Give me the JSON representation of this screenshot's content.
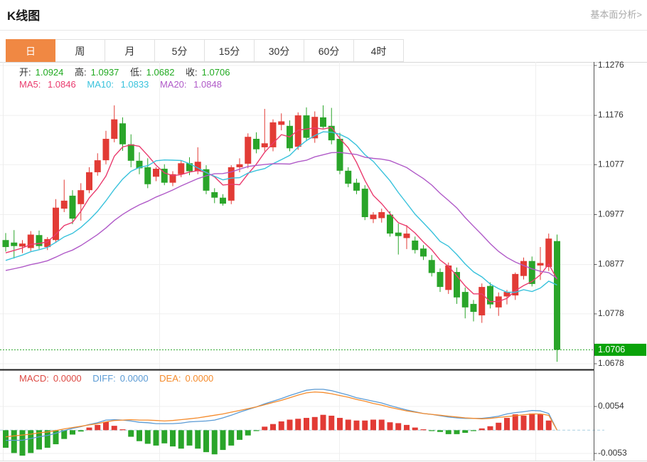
{
  "header": {
    "title": "K线图",
    "link": "基本面分析>"
  },
  "tabs": {
    "items": [
      "日",
      "周",
      "月",
      "5分",
      "15分",
      "30分",
      "60分",
      "4时"
    ],
    "selected_index": 0
  },
  "kline_legend": {
    "open_label": "开:",
    "open": "1.0924",
    "high_label": "高:",
    "high": "1.0937",
    "low_label": "低:",
    "low": "1.0682",
    "close_label": "收:",
    "close": "1.0706"
  },
  "ma_legend": {
    "ma5_label": "MA5:",
    "ma5": "1.0846",
    "ma10_label": "MA10:",
    "ma10": "1.0833",
    "ma20_label": "MA20:",
    "ma20": "1.0848"
  },
  "macd_legend": {
    "macd_label": "MACD:",
    "macd": "0.0000",
    "diff_label": "DIFF:",
    "diff": "0.0000",
    "dea_label": "DEA:",
    "dea": "0.0000"
  },
  "price_axis": {
    "ticks": [
      "1.1276",
      "1.1176",
      "1.1077",
      "1.0977",
      "1.0877",
      "1.0778",
      "1.0678"
    ],
    "current_price": "1.0706"
  },
  "macd_axis": {
    "ticks": [
      "0.0054",
      "-0.0053"
    ]
  },
  "colors": {
    "up": "#e23b35",
    "down": "#2aa52a",
    "ma5": "#ea3b6e",
    "ma10": "#38c2dc",
    "ma20": "#b05ac8",
    "diff": "#5b9bd5",
    "dea": "#f58b2c",
    "macd_text": "#dd4a44",
    "grid": "#efefef",
    "axis": "#555555",
    "axis_text": "#333333",
    "zero_dash": "#a9cfe0",
    "price_dash": "#2aa52a",
    "badge_bg": "#0aa30a",
    "tab_selected": "#f08843"
  },
  "chart_data": [
    {
      "type": "candlestick",
      "title": "K线图 (daily candlesticks with MA5/MA10/MA20)",
      "yticks": [
        1.1276,
        1.1176,
        1.1077,
        1.0977,
        1.0877,
        1.0778,
        1.0678
      ],
      "last_bar": {
        "open": 1.0924,
        "high": 1.0937,
        "low": 1.0682,
        "close": 1.0706
      },
      "current_price": 1.0706,
      "ma_periods": [
        5,
        10,
        20
      ],
      "ma_last_values": {
        "MA5": 1.0846,
        "MA10": 1.0833,
        "MA20": 1.0848
      },
      "ma_seed": [
        1.0845,
        1.0845,
        1.0845,
        1.0845,
        1.0845,
        1.0845,
        1.0845,
        1.0845,
        1.0845,
        1.0845,
        1.086,
        1.0865,
        1.087,
        1.0875,
        1.088,
        1.089,
        1.0895,
        1.09,
        1.0905
      ],
      "candles": [
        [
          1.0926,
          1.094,
          1.0903,
          1.0912
        ],
        [
          1.0921,
          1.0946,
          1.0889,
          1.0914
        ],
        [
          1.0913,
          1.0926,
          1.09,
          1.0919
        ],
        [
          1.091,
          1.0944,
          1.0904,
          1.0937
        ],
        [
          1.0936,
          1.0945,
          1.0908,
          1.0914
        ],
        [
          1.0912,
          1.0932,
          1.0906,
          1.0928
        ],
        [
          1.0926,
          1.1008,
          1.0921,
          1.0991
        ],
        [
          1.0989,
          1.1047,
          1.0982,
          1.1005
        ],
        [
          1.1015,
          1.1026,
          1.0958,
          1.0969
        ],
        [
          1.0998,
          1.104,
          1.0965,
          1.1026
        ],
        [
          1.1026,
          1.1072,
          1.102,
          1.1062
        ],
        [
          1.1062,
          1.11,
          1.1055,
          1.1086
        ],
        [
          1.1086,
          1.1145,
          1.1078,
          1.1129
        ],
        [
          1.1129,
          1.1196,
          1.1122,
          1.1168
        ],
        [
          1.116,
          1.1172,
          1.1105,
          1.1118
        ],
        [
          1.1118,
          1.1138,
          1.1072,
          1.1085
        ],
        [
          1.1085,
          1.1102,
          1.1058,
          1.107
        ],
        [
          1.1072,
          1.109,
          1.103,
          1.1038
        ],
        [
          1.1053,
          1.1072,
          1.1044,
          1.1069
        ],
        [
          1.1069,
          1.1078,
          1.1036,
          1.1041
        ],
        [
          1.1041,
          1.1064,
          1.1034,
          1.1058
        ],
        [
          1.1058,
          1.1085,
          1.1052,
          1.108
        ],
        [
          1.108,
          1.1092,
          1.1056,
          1.1064
        ],
        [
          1.1064,
          1.1112,
          1.1058,
          1.1083
        ],
        [
          1.1068,
          1.1076,
          1.1018,
          1.1025
        ],
        [
          1.1022,
          1.103,
          1.1,
          1.1011
        ],
        [
          1.1011,
          1.1018,
          1.0995,
          1.0999
        ],
        [
          1.1005,
          1.1076,
          1.0998,
          1.1072
        ],
        [
          1.1072,
          1.109,
          1.1062,
          1.1078
        ],
        [
          1.1079,
          1.114,
          1.107,
          1.1133
        ],
        [
          1.1129,
          1.1142,
          1.11,
          1.1108
        ],
        [
          1.1112,
          1.1189,
          1.1104,
          1.112
        ],
        [
          1.1112,
          1.1168,
          1.1104,
          1.1162
        ],
        [
          1.1157,
          1.118,
          1.1146,
          1.1164
        ],
        [
          1.1155,
          1.1166,
          1.1104,
          1.111
        ],
        [
          1.1113,
          1.1182,
          1.1107,
          1.1176
        ],
        [
          1.1176,
          1.1192,
          1.1124,
          1.1131
        ],
        [
          1.113,
          1.1184,
          1.1121,
          1.1173
        ],
        [
          1.1172,
          1.1196,
          1.115,
          1.1153
        ],
        [
          1.1155,
          1.1191,
          1.1118,
          1.1126
        ],
        [
          1.1129,
          1.1141,
          1.1058,
          1.1065
        ],
        [
          1.1065,
          1.1072,
          1.1032,
          1.1039
        ],
        [
          1.1041,
          1.1049,
          1.1018,
          1.1025
        ],
        [
          1.1029,
          1.1036,
          1.0966,
          1.0972
        ],
        [
          1.0968,
          1.0982,
          1.096,
          1.0977
        ],
        [
          1.097,
          1.0989,
          1.0961,
          1.0982
        ],
        [
          1.0977,
          1.0984,
          1.0933,
          1.0939
        ],
        [
          1.0941,
          1.0959,
          1.0897,
          1.0934
        ],
        [
          1.093,
          1.0956,
          1.0908,
          1.0939
        ],
        [
          1.0925,
          1.0933,
          1.0899,
          1.0906
        ],
        [
          1.0909,
          1.0916,
          1.0886,
          1.0893
        ],
        [
          1.0886,
          1.0896,
          1.0853,
          1.086
        ],
        [
          1.0862,
          1.0869,
          1.0822,
          1.0832
        ],
        [
          1.0826,
          1.0881,
          1.0818,
          1.0875
        ],
        [
          1.0862,
          1.0871,
          1.0798,
          1.0811
        ],
        [
          1.0822,
          1.0831,
          1.0769,
          1.0791
        ],
        [
          1.0798,
          1.0806,
          1.0763,
          1.0782
        ],
        [
          1.0775,
          1.0839,
          1.076,
          1.0832
        ],
        [
          1.0834,
          1.0841,
          1.0789,
          1.0797
        ],
        [
          1.0791,
          1.0821,
          1.0774,
          1.0813
        ],
        [
          1.0813,
          1.0826,
          1.0797,
          1.0822
        ],
        [
          1.0815,
          1.0861,
          1.0806,
          1.0858
        ],
        [
          1.0854,
          1.0891,
          1.0847,
          1.0884
        ],
        [
          1.0884,
          1.0893,
          1.0833,
          1.0838
        ],
        [
          1.0875,
          1.0912,
          1.0846,
          1.088
        ],
        [
          1.0872,
          1.0939,
          1.0864,
          1.0929
        ],
        [
          1.0924,
          1.0937,
          1.0682,
          1.0706
        ]
      ]
    },
    {
      "type": "bar",
      "title": "MACD (histogram with DIFF/DEA lines)",
      "yticks": [
        0.0054,
        -0.0053
      ],
      "last_values": {
        "MACD": 0.0,
        "DIFF": 0.0,
        "DEA": 0.0
      },
      "hist": [
        -0.004,
        -0.0052,
        -0.0058,
        -0.0052,
        -0.0044,
        -0.004,
        -0.0032,
        -0.002,
        -0.001,
        -0.0003,
        0.0006,
        0.0012,
        0.0019,
        0.001,
        0.0002,
        -0.0015,
        -0.0025,
        -0.0031,
        -0.0035,
        -0.003,
        -0.0037,
        -0.0042,
        -0.0035,
        -0.0042,
        -0.005,
        -0.0055,
        -0.0045,
        -0.0035,
        -0.0022,
        -0.0012,
        -0.0002,
        0.0008,
        0.0014,
        0.002,
        0.0024,
        0.0026,
        0.0028,
        0.003,
        0.0035,
        0.0033,
        0.0028,
        0.0024,
        0.0022,
        0.0022,
        0.0024,
        0.0024,
        0.0018,
        0.0016,
        0.0012,
        0.0006,
        0.0002,
        -0.0002,
        -0.0004,
        -0.0009,
        -0.0009,
        -0.0006,
        -0.0002,
        0.0004,
        0.0009,
        0.0017,
        0.0028,
        0.0036,
        0.0033,
        0.0038,
        0.0036,
        0.0022,
        0.0
      ],
      "dea": [
        -0.0015,
        -0.0013,
        -0.0011,
        -0.0009,
        -0.0006,
        -0.0004,
        -0.0001,
        0.0003,
        0.0006,
        0.0009,
        0.0012,
        0.0015,
        0.0019,
        0.0022,
        0.0023,
        0.0024,
        0.0023,
        0.0023,
        0.0022,
        0.0021,
        0.0022,
        0.0024,
        0.0026,
        0.0028,
        0.0031,
        0.0034,
        0.0037,
        0.0041,
        0.0045,
        0.0049,
        0.0053,
        0.0058,
        0.0063,
        0.0068,
        0.0074,
        0.008,
        0.0085,
        0.0087,
        0.0086,
        0.0083,
        0.0079,
        0.0075,
        0.007,
        0.0066,
        0.0061,
        0.0057,
        0.0052,
        0.0048,
        0.0044,
        0.0041,
        0.0038,
        0.0036,
        0.0034,
        0.0032,
        0.003,
        0.0028,
        0.0027,
        0.0026,
        0.0027,
        0.0029,
        0.0031,
        0.0033,
        0.0035,
        0.0037,
        0.0037,
        0.0034,
        0.0
      ],
      "diff": [
        -0.0023,
        -0.0023,
        -0.0023,
        -0.0019,
        -0.0015,
        -0.0012,
        -0.0007,
        -0.0001,
        0.0004,
        0.0008,
        0.0013,
        0.0017,
        0.0023,
        0.0024,
        0.0023,
        0.0021,
        0.0018,
        0.0017,
        0.0015,
        0.0015,
        0.0015,
        0.0016,
        0.0019,
        0.002,
        0.0021,
        0.0023,
        0.0028,
        0.0034,
        0.0041,
        0.0047,
        0.0053,
        0.006,
        0.0066,
        0.0072,
        0.0079,
        0.0085,
        0.0091,
        0.0093,
        0.0093,
        0.009,
        0.0085,
        0.008,
        0.0074,
        0.007,
        0.0066,
        0.0062,
        0.0056,
        0.0051,
        0.0046,
        0.0042,
        0.0038,
        0.0036,
        0.0033,
        0.003,
        0.0028,
        0.0027,
        0.0027,
        0.0027,
        0.0029,
        0.0032,
        0.0037,
        0.004,
        0.0042,
        0.0045,
        0.0044,
        0.0038,
        0.0
      ]
    }
  ]
}
